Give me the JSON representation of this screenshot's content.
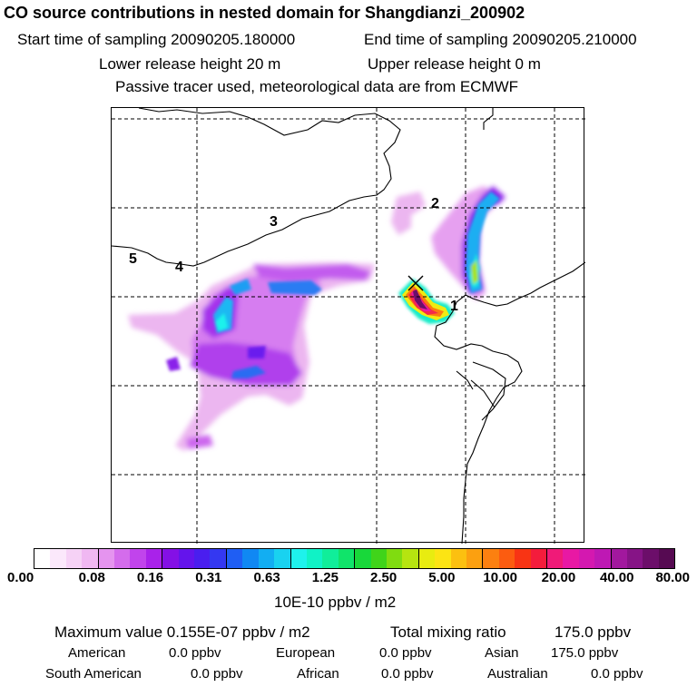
{
  "header": {
    "title": "CO  source contributions in nested domain for Shangdianzi_200902",
    "start_label": "Start time of sampling 20090205.180000",
    "end_label": "End time of sampling 20090205.210000",
    "lower_label": "Lower release height   20 m",
    "upper_label": "Upper release height    0 m",
    "note": "Passive tracer used, meteorological data are from ECMWF"
  },
  "map": {
    "region_labels": [
      "1",
      "2",
      "3",
      "4",
      "5"
    ],
    "station_marker": "station-x-icon"
  },
  "colorbar": {
    "ticks": [
      "0.00",
      "0.08",
      "0.16",
      "0.31",
      "0.63",
      "1.25",
      "2.50",
      "5.00",
      "10.00",
      "20.00",
      "40.00",
      "80.00"
    ],
    "unit": "10E-10 ppbv / m2",
    "colors": [
      "#ffffff",
      "#fbe8fb",
      "#f6d2f6",
      "#f0b8f2",
      "#e594ef",
      "#d46cec",
      "#c144ec",
      "#a922ea",
      "#8410e6",
      "#6414ec",
      "#4a1eef",
      "#3438f1",
      "#1f5ef4",
      "#1088f3",
      "#12aef2",
      "#19d2f0",
      "#1ef2ec",
      "#10f2c6",
      "#10ee9a",
      "#10e46a",
      "#18d83a",
      "#40d41a",
      "#80dc10",
      "#b6e410",
      "#e8ec10",
      "#fce414",
      "#fcc010",
      "#fca010",
      "#fc8010",
      "#fc5c10",
      "#f83414",
      "#f41c3c",
      "#f01a78",
      "#e818a4",
      "#d418b0",
      "#be18b4",
      "#a2189e",
      "#861486",
      "#6c0e6a",
      "#560a52"
    ]
  },
  "footer": {
    "max_label": "Maximum value  0.155E-07 ppbv / m2",
    "total_label": "Total mixing ratio",
    "total_value": "175.0 ppbv",
    "contributions": [
      {
        "name": "American",
        "value": "0.0 ppbv"
      },
      {
        "name": "European",
        "value": "0.0 ppbv"
      },
      {
        "name": "Asian",
        "value": "175.0 ppbv"
      },
      {
        "name": "South American",
        "value": "0.0 ppbv"
      },
      {
        "name": "African",
        "value": "0.0 ppbv"
      },
      {
        "name": "Australian",
        "value": "0.0 ppbv"
      }
    ]
  }
}
